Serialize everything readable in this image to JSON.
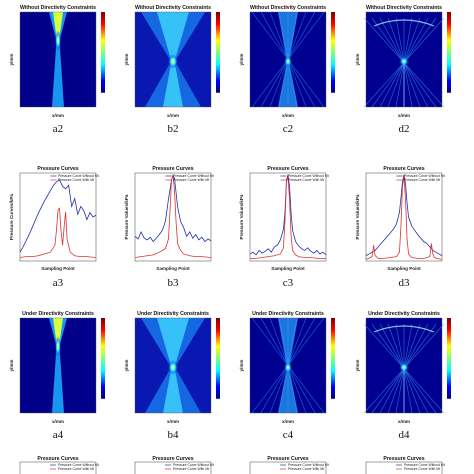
{
  "chart_data": [
    {
      "id": "a2",
      "type": "heatmap",
      "panel_label": "a2",
      "title": "Without Directivity Constraints",
      "xlabel": "x/mm",
      "ylabel": "y/mm",
      "pattern": "narrow-focus",
      "focus_y": 0.3
    },
    {
      "id": "b2",
      "type": "heatmap",
      "panel_label": "b2",
      "title": "Without Directivity Constraints",
      "xlabel": "x/mm",
      "ylabel": "y/mm",
      "pattern": "mid-focus",
      "focus_y": 0.52
    },
    {
      "id": "c2",
      "type": "heatmap",
      "panel_label": "c2",
      "title": "Without Directivity Constraints",
      "xlabel": "x/mm",
      "ylabel": "y/mm",
      "pattern": "mid-focus-dark",
      "focus_y": 0.52
    },
    {
      "id": "d2",
      "type": "heatmap",
      "panel_label": "d2",
      "title": "Without Directivity Constraints",
      "xlabel": "x/mm",
      "ylabel": "y/mm",
      "pattern": "star-focus",
      "focus_y": 0.52
    },
    {
      "id": "a3",
      "type": "line",
      "panel_label": "a3",
      "title": "Pressure Curves",
      "xlabel": "Sampling Point",
      "ylabel": "Pressure Curves/kPa",
      "legend": [
        "Pressure Curve Without Mt",
        "Pressure Curve With Mt"
      ],
      "colors": [
        "#1f2fa8",
        "#e03030"
      ],
      "series": [
        {
          "x": [
            0,
            10,
            20,
            30,
            40,
            50,
            60,
            70,
            80,
            90,
            100,
            110,
            120,
            130,
            140,
            150,
            160,
            170,
            180,
            190,
            200,
            210,
            220,
            230,
            240,
            250
          ],
          "y": [
            0.1,
            0.16,
            0.23,
            0.3,
            0.38,
            0.46,
            0.54,
            0.61,
            0.68,
            0.74,
            0.8,
            0.86,
            0.9,
            0.92,
            0.85,
            0.82,
            0.86,
            0.62,
            0.71,
            0.53,
            0.62,
            0.57,
            0.47,
            0.55,
            0.5,
            0.52
          ]
        },
        {
          "x": [
            0,
            20,
            40,
            60,
            80,
            100,
            115,
            120,
            125,
            130,
            135,
            140,
            145,
            150,
            155,
            165,
            180,
            200,
            220,
            250
          ],
          "y": [
            0.04,
            0.05,
            0.05,
            0.06,
            0.08,
            0.1,
            0.18,
            0.35,
            0.58,
            0.6,
            0.34,
            0.18,
            0.38,
            0.56,
            0.25,
            0.1,
            0.06,
            0.05,
            0.05,
            0.04
          ]
        }
      ]
    },
    {
      "id": "b3",
      "type": "line",
      "panel_label": "b3",
      "title": "Pressure Curves",
      "xlabel": "Sampling Point",
      "ylabel": "Pressure Values/kPa",
      "legend": [
        "Pressure Curve Without Mt",
        "Pressure Curve With Mt"
      ],
      "colors": [
        "#1f2fa8",
        "#e03030"
      ],
      "series": [
        {
          "x": [
            0,
            10,
            20,
            30,
            40,
            50,
            60,
            70,
            80,
            90,
            100,
            110,
            120,
            125,
            130,
            135,
            140,
            150,
            160,
            170,
            180,
            190,
            200,
            210,
            220,
            230,
            240,
            250
          ],
          "y": [
            0.28,
            0.25,
            0.33,
            0.26,
            0.24,
            0.27,
            0.22,
            0.26,
            0.3,
            0.35,
            0.45,
            0.7,
            0.92,
            0.97,
            0.94,
            0.78,
            0.62,
            0.45,
            0.38,
            0.28,
            0.33,
            0.26,
            0.3,
            0.24,
            0.27,
            0.22,
            0.25,
            0.23
          ]
        },
        {
          "x": [
            0,
            20,
            40,
            60,
            80,
            100,
            110,
            115,
            120,
            125,
            130,
            135,
            140,
            150,
            160,
            180,
            200,
            220,
            250
          ],
          "y": [
            0.04,
            0.05,
            0.06,
            0.07,
            0.1,
            0.14,
            0.25,
            0.55,
            0.92,
            0.98,
            0.8,
            0.45,
            0.2,
            0.12,
            0.08,
            0.06,
            0.05,
            0.05,
            0.04
          ]
        }
      ]
    },
    {
      "id": "c3",
      "type": "line",
      "panel_label": "c3",
      "title": "Pressure Curves",
      "xlabel": "Sampling Point",
      "ylabel": "Pressure Values/kPa",
      "legend": [
        "Pressure Curve Without Mt",
        "Pressure Curve With Mt"
      ],
      "colors": [
        "#1f2fa8",
        "#e03030"
      ],
      "series": [
        {
          "x": [
            0,
            10,
            20,
            30,
            40,
            50,
            60,
            70,
            80,
            90,
            100,
            110,
            115,
            120,
            125,
            130,
            135,
            140,
            150,
            160,
            170,
            180,
            190,
            200,
            210,
            220,
            230,
            240,
            250
          ],
          "y": [
            0.08,
            0.1,
            0.07,
            0.12,
            0.09,
            0.11,
            0.14,
            0.1,
            0.16,
            0.18,
            0.24,
            0.36,
            0.55,
            0.92,
            0.98,
            0.85,
            0.55,
            0.35,
            0.22,
            0.17,
            0.14,
            0.12,
            0.15,
            0.11,
            0.09,
            0.12,
            0.08,
            0.1,
            0.07
          ]
        },
        {
          "x": [
            0,
            20,
            40,
            60,
            80,
            100,
            110,
            115,
            120,
            125,
            130,
            135,
            140,
            150,
            160,
            180,
            200,
            220,
            250
          ],
          "y": [
            0.03,
            0.03,
            0.04,
            0.05,
            0.06,
            0.08,
            0.15,
            0.45,
            0.9,
            0.96,
            0.7,
            0.3,
            0.12,
            0.07,
            0.05,
            0.04,
            0.04,
            0.03,
            0.03
          ]
        }
      ]
    },
    {
      "id": "d3",
      "type": "line",
      "panel_label": "d3",
      "title": "Pressure Curves",
      "xlabel": "Sampling Point",
      "ylabel": "Pressure Values/kPa",
      "legend": [
        "Pressure Curve Without Mt",
        "Pressure Curve With Mt"
      ],
      "colors": [
        "#1f2fa8",
        "#e03030"
      ],
      "series": [
        {
          "x": [
            0,
            10,
            20,
            30,
            40,
            50,
            60,
            70,
            80,
            90,
            100,
            110,
            115,
            120,
            125,
            130,
            135,
            140,
            150,
            160,
            170,
            180,
            190,
            200,
            210,
            220,
            230,
            240,
            250
          ],
          "y": [
            0.06,
            0.08,
            0.1,
            0.12,
            0.16,
            0.2,
            0.24,
            0.28,
            0.32,
            0.36,
            0.42,
            0.55,
            0.72,
            0.9,
            0.98,
            0.88,
            0.66,
            0.5,
            0.4,
            0.35,
            0.3,
            0.26,
            0.22,
            0.2,
            0.16,
            0.12,
            0.1,
            0.08,
            0.06
          ]
        },
        {
          "x": [
            0,
            10,
            20,
            25,
            30,
            40,
            60,
            80,
            100,
            110,
            115,
            120,
            125,
            130,
            135,
            140,
            150,
            170,
            190,
            210,
            215,
            220,
            225,
            230,
            250
          ],
          "y": [
            0.02,
            0.03,
            0.05,
            0.18,
            0.06,
            0.03,
            0.03,
            0.04,
            0.05,
            0.1,
            0.4,
            0.85,
            0.96,
            0.7,
            0.25,
            0.08,
            0.04,
            0.03,
            0.03,
            0.05,
            0.2,
            0.08,
            0.04,
            0.03,
            0.02
          ]
        }
      ]
    },
    {
      "id": "a4",
      "type": "heatmap",
      "panel_label": "a4",
      "title": "Under Directivity Constraints",
      "xlabel": "x/mm",
      "ylabel": "y/mm",
      "pattern": "narrow-focus",
      "focus_y": 0.3
    },
    {
      "id": "b4",
      "type": "heatmap",
      "panel_label": "b4",
      "title": "Under Directivity Constraints",
      "xlabel": "x/mm",
      "ylabel": "y/mm",
      "pattern": "mid-focus",
      "focus_y": 0.52
    },
    {
      "id": "c4",
      "type": "heatmap",
      "panel_label": "c4",
      "title": "Under Directivity Constraints",
      "xlabel": "x/mm",
      "ylabel": "y/mm",
      "pattern": "mid-focus-dark",
      "focus_y": 0.52
    },
    {
      "id": "d4",
      "type": "heatmap",
      "panel_label": "d4",
      "title": "Under Directivity Constraints",
      "xlabel": "x/mm",
      "ylabel": "y/mm",
      "pattern": "star-focus",
      "focus_y": 0.52
    },
    {
      "id": "a5",
      "type": "line",
      "title": "Pressure Curves",
      "legend": [
        "Pressure Curve Without Mt",
        "Pressure Curve With Mt"
      ],
      "partial": true
    },
    {
      "id": "b5",
      "type": "line",
      "title": "Pressure Curves",
      "legend": [
        "Pressure Curve Without Mt",
        "Pressure Curve With Mt"
      ],
      "partial": true
    },
    {
      "id": "c5",
      "type": "line",
      "title": "Pressure Curves",
      "legend": [
        "Pressure Curve Without Mt",
        "Pressure Curve With Mt"
      ],
      "partial": true
    },
    {
      "id": "d5",
      "type": "line",
      "title": "Pressure Curves",
      "legend": [
        "Pressure Curve Without Mt",
        "Pressure Curve With Mt"
      ],
      "partial": true
    }
  ]
}
